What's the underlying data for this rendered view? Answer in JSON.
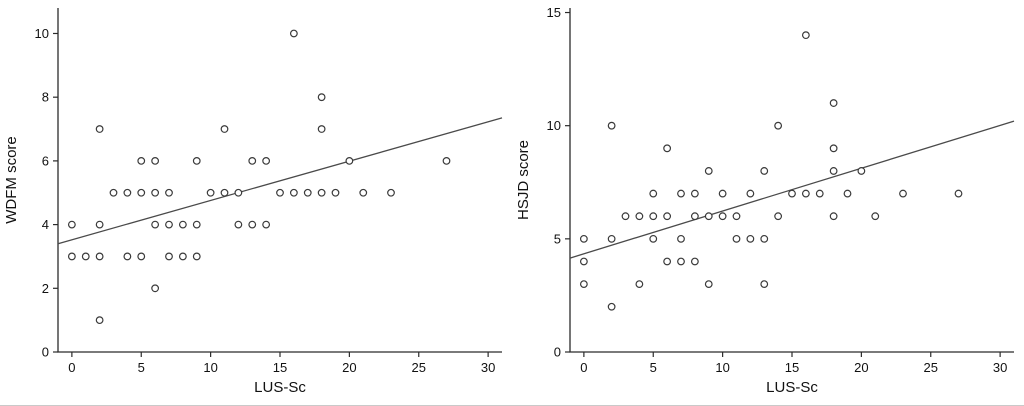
{
  "figure": {
    "background": "#ffffff",
    "axis_color": "#2b2b2b",
    "text_color": "#111111"
  },
  "chart_data": [
    {
      "type": "scatter",
      "title": "",
      "xlabel": "LUS-Sc",
      "ylabel": "WDFM score",
      "xlim": [
        -1,
        31
      ],
      "ylim": [
        0,
        10.8
      ],
      "xticks": [
        0,
        5,
        10,
        15,
        20,
        25,
        30
      ],
      "yticks": [
        0,
        2,
        4,
        6,
        8,
        10
      ],
      "grid": false,
      "legend": "none",
      "marker": {
        "shape": "open-circle",
        "color": "#3a3a3a"
      },
      "line_color": "#4a4a4a",
      "trend_line": {
        "x1": -1,
        "y1": 3.4,
        "x2": 31,
        "y2": 7.35
      },
      "points": [
        [
          0,
          3
        ],
        [
          0,
          4
        ],
        [
          1,
          3
        ],
        [
          2,
          1
        ],
        [
          2,
          3
        ],
        [
          2,
          4
        ],
        [
          2,
          7
        ],
        [
          3,
          5
        ],
        [
          4,
          3
        ],
        [
          4,
          5
        ],
        [
          5,
          3
        ],
        [
          5,
          5
        ],
        [
          5,
          6
        ],
        [
          6,
          2
        ],
        [
          6,
          4
        ],
        [
          6,
          5
        ],
        [
          6,
          6
        ],
        [
          7,
          3
        ],
        [
          7,
          4
        ],
        [
          7,
          5
        ],
        [
          8,
          3
        ],
        [
          8,
          4
        ],
        [
          9,
          3
        ],
        [
          9,
          4
        ],
        [
          9,
          6
        ],
        [
          10,
          5
        ],
        [
          11,
          5
        ],
        [
          11,
          7
        ],
        [
          12,
          4
        ],
        [
          12,
          5
        ],
        [
          13,
          4
        ],
        [
          13,
          6
        ],
        [
          14,
          4
        ],
        [
          14,
          6
        ],
        [
          15,
          5
        ],
        [
          16,
          5
        ],
        [
          16,
          10
        ],
        [
          17,
          5
        ],
        [
          18,
          5
        ],
        [
          18,
          7
        ],
        [
          18,
          8
        ],
        [
          19,
          5
        ],
        [
          20,
          6
        ],
        [
          21,
          5
        ],
        [
          23,
          5
        ],
        [
          27,
          6
        ]
      ]
    },
    {
      "type": "scatter",
      "title": "",
      "xlabel": "LUS-Sc",
      "ylabel": "HSJD score",
      "xlim": [
        -1,
        31
      ],
      "ylim": [
        0,
        15.2
      ],
      "xticks": [
        0,
        5,
        10,
        15,
        20,
        25,
        30
      ],
      "yticks": [
        0,
        5,
        10,
        15
      ],
      "grid": false,
      "legend": "none",
      "marker": {
        "shape": "open-circle",
        "color": "#3a3a3a"
      },
      "line_color": "#4a4a4a",
      "trend_line": {
        "x1": -1,
        "y1": 4.15,
        "x2": 31,
        "y2": 10.2
      },
      "points": [
        [
          0,
          3
        ],
        [
          0,
          4
        ],
        [
          0,
          5
        ],
        [
          2,
          2
        ],
        [
          2,
          5
        ],
        [
          2,
          10
        ],
        [
          3,
          6
        ],
        [
          4,
          3
        ],
        [
          4,
          6
        ],
        [
          5,
          5
        ],
        [
          5,
          6
        ],
        [
          5,
          7
        ],
        [
          6,
          4
        ],
        [
          6,
          6
        ],
        [
          6,
          9
        ],
        [
          7,
          4
        ],
        [
          7,
          5
        ],
        [
          7,
          7
        ],
        [
          8,
          4
        ],
        [
          8,
          6
        ],
        [
          8,
          7
        ],
        [
          9,
          3
        ],
        [
          9,
          6
        ],
        [
          9,
          8
        ],
        [
          10,
          6
        ],
        [
          10,
          7
        ],
        [
          11,
          5
        ],
        [
          11,
          6
        ],
        [
          12,
          5
        ],
        [
          12,
          7
        ],
        [
          13,
          3
        ],
        [
          13,
          5
        ],
        [
          13,
          8
        ],
        [
          14,
          6
        ],
        [
          14,
          10
        ],
        [
          15,
          7
        ],
        [
          16,
          7
        ],
        [
          16,
          14
        ],
        [
          17,
          7
        ],
        [
          18,
          6
        ],
        [
          18,
          8
        ],
        [
          18,
          9
        ],
        [
          18,
          11
        ],
        [
          19,
          7
        ],
        [
          20,
          8
        ],
        [
          21,
          6
        ],
        [
          23,
          7
        ],
        [
          27,
          7
        ]
      ]
    }
  ]
}
